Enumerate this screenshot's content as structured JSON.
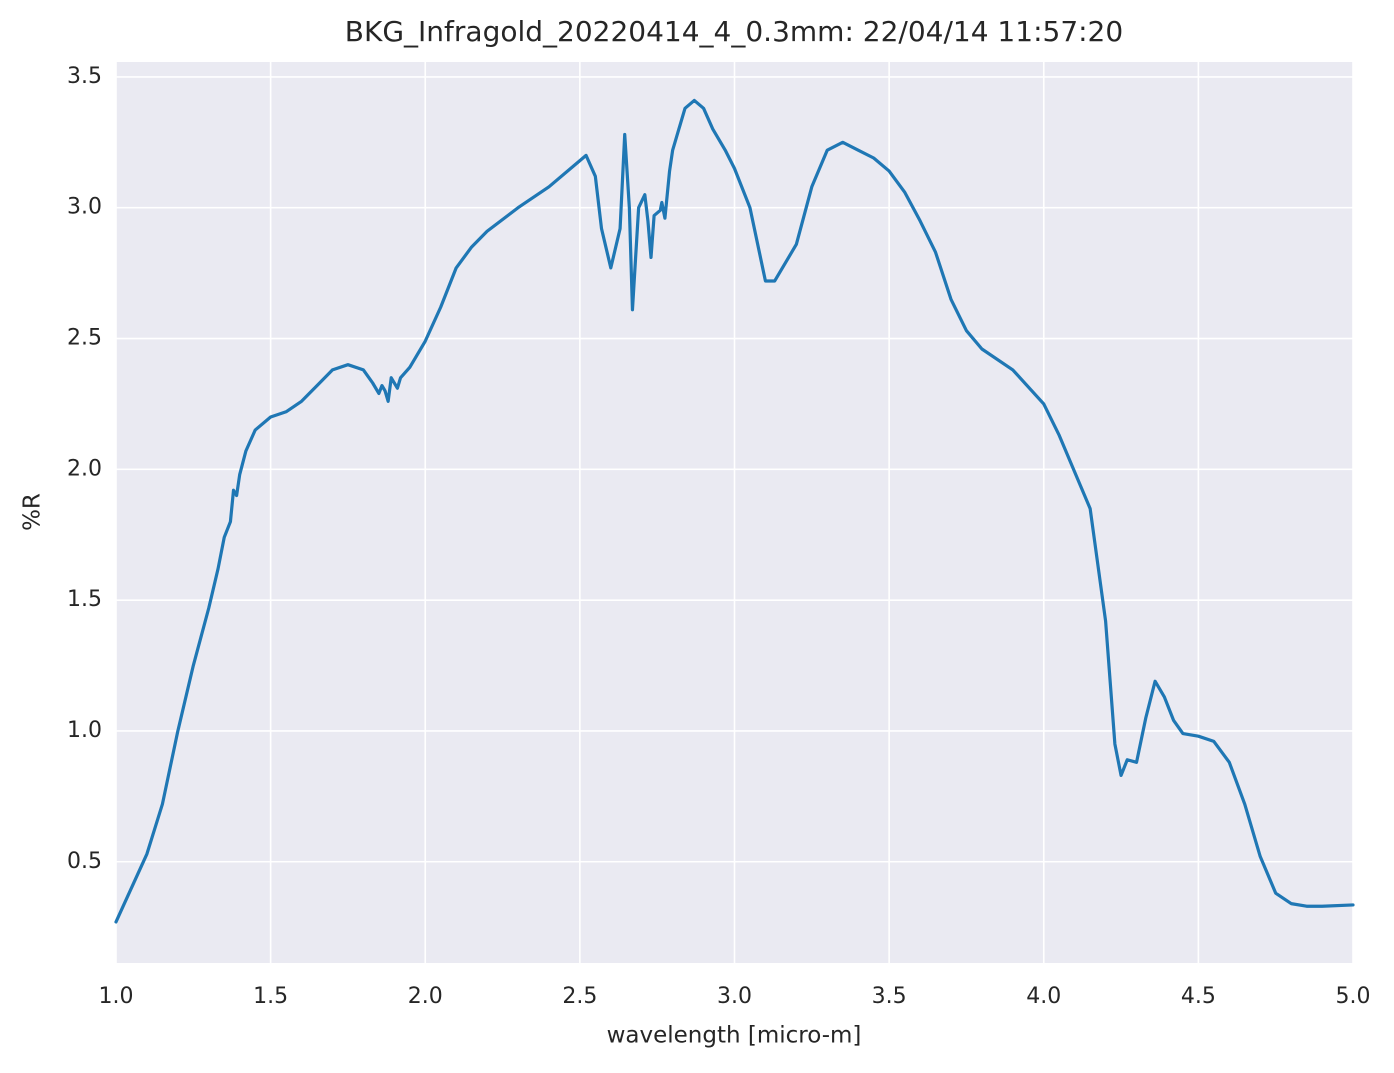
{
  "chart_data": {
    "type": "line",
    "title": "BKG_Infragold_20220414_4_0.3mm:  22/04/14 11:57:20",
    "x_label": "wavelength [micro-m]",
    "y_label": "%R",
    "color": "#1f77b4",
    "grid": true,
    "xlim": [
      1.0,
      5.0
    ],
    "ylim": [
      0.113,
      3.557
    ],
    "xticks": [
      {
        "value": 1,
        "label": "1.0"
      },
      1.5,
      {
        "value": 2,
        "label": "2.0"
      },
      2.5,
      {
        "value": 3,
        "label": "3.0"
      },
      3.5,
      {
        "value": 4,
        "label": "4.0"
      },
      4.5,
      {
        "value": 5,
        "label": "5.0"
      }
    ],
    "yticks": [
      0.5,
      {
        "value": 1,
        "label": "1.0"
      },
      1.5,
      {
        "value": 2,
        "label": "2.0"
      },
      2.5,
      {
        "value": 3,
        "label": "3.0"
      },
      3.5
    ],
    "x": [
      1.0,
      1.05,
      1.1,
      1.15,
      1.2,
      1.25,
      1.3,
      1.33,
      1.35,
      1.37,
      1.38,
      1.39,
      1.4,
      1.42,
      1.45,
      1.5,
      1.55,
      1.6,
      1.65,
      1.7,
      1.75,
      1.8,
      1.83,
      1.85,
      1.86,
      1.87,
      1.88,
      1.89,
      1.9,
      1.91,
      1.92,
      1.95,
      2.0,
      2.05,
      2.1,
      2.15,
      2.2,
      2.3,
      2.4,
      2.5,
      2.52,
      2.55,
      2.57,
      2.6,
      2.63,
      2.645,
      2.66,
      2.67,
      2.69,
      2.71,
      2.72,
      2.73,
      2.74,
      2.76,
      2.765,
      2.775,
      2.79,
      2.8,
      2.82,
      2.84,
      2.87,
      2.9,
      2.93,
      2.97,
      3.0,
      3.05,
      3.1,
      3.13,
      3.2,
      3.25,
      3.3,
      3.35,
      3.4,
      3.45,
      3.5,
      3.55,
      3.6,
      3.65,
      3.7,
      3.75,
      3.8,
      3.9,
      4.0,
      4.05,
      4.1,
      4.15,
      4.2,
      4.23,
      4.25,
      4.27,
      4.3,
      4.33,
      4.36,
      4.39,
      4.42,
      4.45,
      4.5,
      4.55,
      4.6,
      4.65,
      4.7,
      4.75,
      4.8,
      4.85,
      4.9,
      5.0
    ],
    "values": [
      0.27,
      0.4,
      0.53,
      0.72,
      1.0,
      1.25,
      1.47,
      1.62,
      1.74,
      1.8,
      1.92,
      1.9,
      1.98,
      2.07,
      2.15,
      2.2,
      2.22,
      2.26,
      2.32,
      2.38,
      2.4,
      2.38,
      2.33,
      2.29,
      2.32,
      2.3,
      2.26,
      2.35,
      2.33,
      2.31,
      2.35,
      2.39,
      2.49,
      2.62,
      2.77,
      2.85,
      2.91,
      3.0,
      3.08,
      3.18,
      3.2,
      3.12,
      2.92,
      2.77,
      2.92,
      3.28,
      3.0,
      2.61,
      3.0,
      3.05,
      2.95,
      2.81,
      2.97,
      2.99,
      3.02,
      2.96,
      3.14,
      3.22,
      3.3,
      3.38,
      3.41,
      3.38,
      3.3,
      3.22,
      3.15,
      3.0,
      2.72,
      2.72,
      2.86,
      3.08,
      3.22,
      3.25,
      3.22,
      3.19,
      3.14,
      3.06,
      2.95,
      2.83,
      2.65,
      2.53,
      2.46,
      2.38,
      2.25,
      2.13,
      1.99,
      1.85,
      1.42,
      0.95,
      0.83,
      0.89,
      0.88,
      1.05,
      1.19,
      1.13,
      1.04,
      0.99,
      0.98,
      0.96,
      0.88,
      0.72,
      0.52,
      0.38,
      0.34,
      0.33,
      0.33,
      0.335
    ]
  }
}
